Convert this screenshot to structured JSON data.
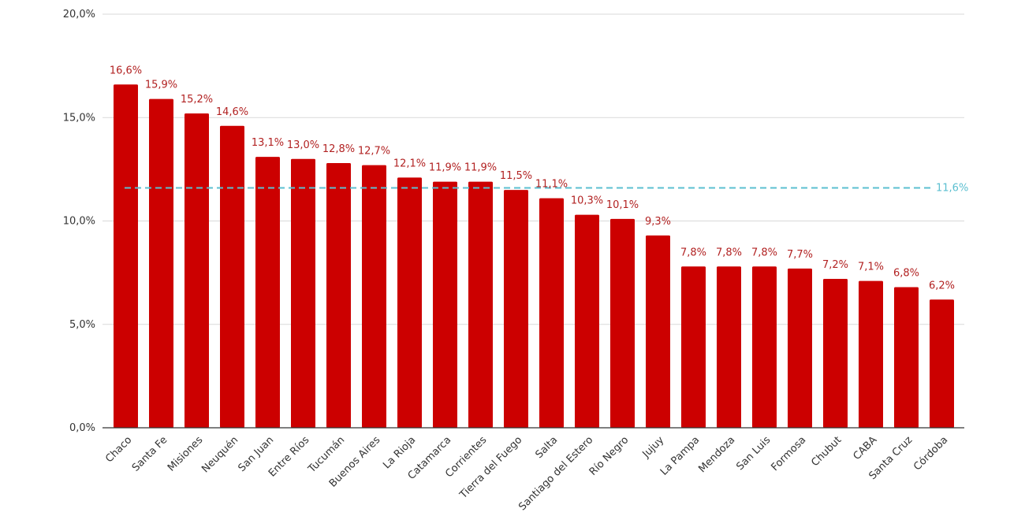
{
  "chart_data": {
    "type": "bar",
    "title": "",
    "xlabel": "",
    "ylabel": "",
    "ylim": [
      0,
      20
    ],
    "y_ticks": [
      0,
      5,
      10,
      15,
      20
    ],
    "y_tick_labels": [
      "0,0%",
      "5,0%",
      "10,0%",
      "15,0%",
      "20,0%"
    ],
    "grid": true,
    "categories": [
      "Chaco",
      "Santa Fe",
      "Misiones",
      "Neuquén",
      "San Juan",
      "Entre Ríos",
      "Tucumán",
      "Buenos Aires",
      "La Rioja",
      "Catamarca",
      "Corrientes",
      "Tierra del Fuego",
      "Salta",
      "Santiago del Estero",
      "Río Negro",
      "Jujuy",
      "La Pampa",
      "Mendoza",
      "San Luis",
      "Formosa",
      "Chubut",
      "CABA",
      "Santa Cruz",
      "Córdoba"
    ],
    "values": [
      16.6,
      15.9,
      15.2,
      14.6,
      13.1,
      13.0,
      12.8,
      12.7,
      12.1,
      11.9,
      11.9,
      11.5,
      11.1,
      10.3,
      10.1,
      9.3,
      7.8,
      7.8,
      7.8,
      7.7,
      7.2,
      7.1,
      6.8,
      6.2
    ],
    "value_labels": [
      "16,6%",
      "15,9%",
      "15,2%",
      "14,6%",
      "13,1%",
      "13,0%",
      "12,8%",
      "12,7%",
      "12,1%",
      "11,9%",
      "11,9%",
      "11,5%",
      "11,1%",
      "10,3%",
      "10,1%",
      "9,3%",
      "7,8%",
      "7,8%",
      "7,8%",
      "7,7%",
      "7,2%",
      "7,1%",
      "6,8%",
      "6,2%"
    ],
    "reference_line": {
      "value": 11.6,
      "label": "11,6%"
    },
    "colors": {
      "bar": "#cc0000",
      "data_label": "#b22222",
      "reference": "#5bbfd0",
      "grid": "#d9d9d9",
      "axis": "#333333"
    }
  }
}
